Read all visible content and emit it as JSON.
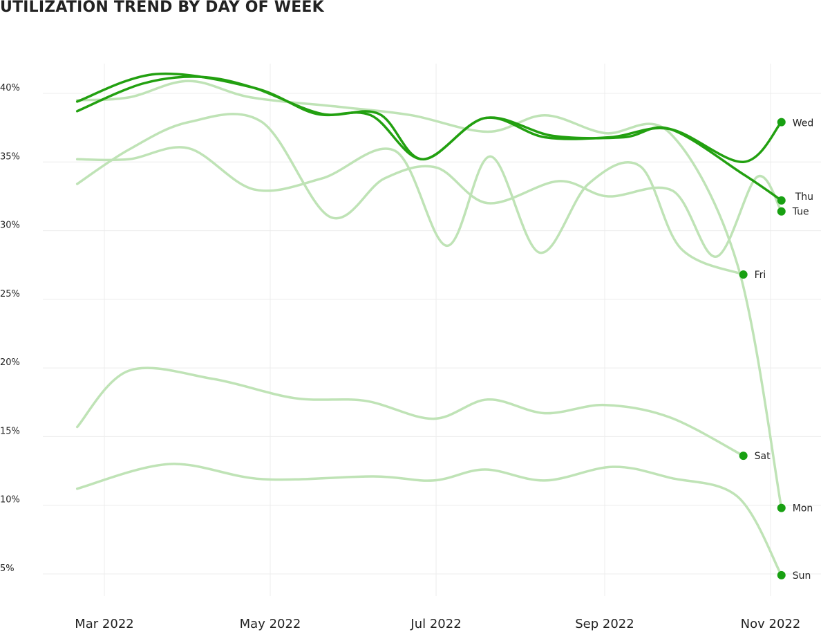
{
  "chart_data": {
    "type": "line",
    "title": "UTILIZATION TREND BY DAY OF WEEK",
    "xlabel": "",
    "ylabel": "",
    "x_range": [
      "2022-02-20",
      "2022-11-13"
    ],
    "ylim": [
      3,
      42
    ],
    "grid": true,
    "legend": "direct labels at line ends",
    "y_ticks": [
      {
        "value": 40,
        "label": "40%"
      },
      {
        "value": 35,
        "label": "35%"
      },
      {
        "value": 30,
        "label": "30%"
      },
      {
        "value": 25,
        "label": "25%"
      },
      {
        "value": 20,
        "label": "20%"
      },
      {
        "value": 15,
        "label": "15%"
      },
      {
        "value": 10,
        "label": "10%"
      },
      {
        "value": 5,
        "label": "5%"
      }
    ],
    "x_ticks": [
      {
        "date": "2022-03-01",
        "label": "Mar 2022"
      },
      {
        "date": "2022-05-01",
        "label": "May 2022"
      },
      {
        "date": "2022-07-01",
        "label": "Jul 2022"
      },
      {
        "date": "2022-09-01",
        "label": "Sep 2022"
      },
      {
        "date": "2022-11-01",
        "label": "Nov 2022"
      }
    ],
    "colors": {
      "highlight": "#22a010",
      "muted": "#bfe3b6",
      "marker": "#18a012",
      "grid": "#ececec"
    },
    "series": [
      {
        "name": "Mon",
        "highlight": false,
        "x": [
          "2022-02-19",
          "2022-03-10",
          "2022-04-01",
          "2022-04-24",
          "2022-05-27",
          "2022-06-22",
          "2022-07-20",
          "2022-08-10",
          "2022-09-01",
          "2022-09-25",
          "2022-10-20",
          "2022-11-05"
        ],
        "y": [
          39.1,
          39.3,
          40.5,
          39.3,
          38.6,
          38.0,
          36.8,
          38.0,
          36.7,
          36.7,
          27.0,
          9.4
        ]
      },
      {
        "name": "Tue",
        "highlight": false,
        "x": [
          "2022-02-19",
          "2022-03-10",
          "2022-04-01",
          "2022-04-28",
          "2022-05-23",
          "2022-06-12",
          "2022-07-01",
          "2022-07-20",
          "2022-08-15",
          "2022-09-02",
          "2022-09-26",
          "2022-10-12",
          "2022-10-27",
          "2022-11-05"
        ],
        "y": [
          33.0,
          35.5,
          37.5,
          37.5,
          30.6,
          33.4,
          34.2,
          31.6,
          33.2,
          32.1,
          32.5,
          27.7,
          33.5,
          31.0
        ]
      },
      {
        "name": "Wed",
        "highlight": true,
        "x": [
          "2022-02-19",
          "2022-03-15",
          "2022-04-05",
          "2022-04-25",
          "2022-05-20",
          "2022-06-10",
          "2022-06-26",
          "2022-07-19",
          "2022-08-10",
          "2022-09-03",
          "2022-09-25",
          "2022-10-22",
          "2022-11-05"
        ],
        "y": [
          38.3,
          40.3,
          40.8,
          40.0,
          38.1,
          38.1,
          34.8,
          37.8,
          36.4,
          36.4,
          37.0,
          34.6,
          37.5
        ]
      },
      {
        "name": "Thu",
        "highlight": true,
        "x": [
          "2022-02-19",
          "2022-03-20",
          "2022-04-25",
          "2022-05-18",
          "2022-06-07",
          "2022-06-26",
          "2022-07-19",
          "2022-08-13",
          "2022-09-08",
          "2022-09-25",
          "2022-10-22",
          "2022-11-05"
        ],
        "y": [
          39.0,
          41.0,
          40.0,
          38.1,
          38.0,
          34.8,
          37.8,
          36.5,
          36.4,
          37.0,
          33.7,
          31.8
        ]
      },
      {
        "name": "Fri",
        "highlight": false,
        "x": [
          "2022-02-19",
          "2022-03-10",
          "2022-04-01",
          "2022-04-25",
          "2022-05-20",
          "2022-06-16",
          "2022-07-05",
          "2022-07-21",
          "2022-08-08",
          "2022-08-26",
          "2022-09-14",
          "2022-09-29",
          "2022-10-22"
        ],
        "y": [
          34.8,
          34.8,
          35.6,
          32.6,
          33.4,
          35.4,
          28.5,
          35.0,
          28.0,
          33.0,
          34.3,
          28.3,
          26.4
        ]
      },
      {
        "name": "Sat",
        "highlight": false,
        "x": [
          "2022-02-19",
          "2022-03-10",
          "2022-04-10",
          "2022-05-10",
          "2022-06-05",
          "2022-06-30",
          "2022-07-20",
          "2022-08-10",
          "2022-09-01",
          "2022-09-25",
          "2022-10-22"
        ],
        "y": [
          15.3,
          19.4,
          18.8,
          17.4,
          17.2,
          15.9,
          17.3,
          16.3,
          16.9,
          16.0,
          13.2
        ]
      },
      {
        "name": "Sun",
        "highlight": false,
        "x": [
          "2022-02-19",
          "2022-03-25",
          "2022-04-28",
          "2022-06-08",
          "2022-06-30",
          "2022-07-19",
          "2022-08-10",
          "2022-09-04",
          "2022-09-25",
          "2022-10-20",
          "2022-11-05"
        ],
        "y": [
          10.8,
          12.6,
          11.5,
          11.7,
          11.4,
          12.2,
          11.4,
          12.4,
          11.6,
          10.2,
          4.5
        ]
      }
    ]
  }
}
